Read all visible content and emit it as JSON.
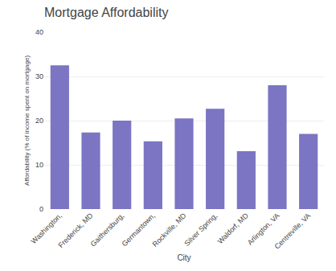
{
  "chart_data": {
    "type": "bar",
    "title": "Mortgage Affordability",
    "xlabel": "City",
    "ylabel": "Affordability (% of income spent on mortgage)",
    "categories": [
      "Washington,",
      "Frederick, MD",
      "Gaithersburg,",
      "Germantown,",
      "Rockville, MD",
      "Silver Spring,",
      "Waldorf, MD",
      "Arlington, VA",
      "Centreville, VA"
    ],
    "values": [
      32.5,
      17.3,
      20.0,
      15.3,
      20.5,
      22.7,
      13.1,
      28.0,
      17.0
    ],
    "color": "#7b75c4",
    "ylim": [
      0,
      40
    ],
    "yticks": [
      0,
      10,
      20,
      30,
      40
    ],
    "grid": true
  }
}
